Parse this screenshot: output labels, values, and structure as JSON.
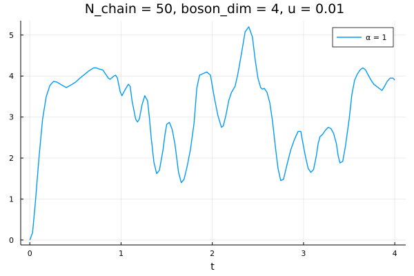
{
  "chart_data": {
    "type": "line",
    "title": "N_chain = 50, boson_dim = 4, u = 0.01",
    "xlabel": "t",
    "ylabel": "",
    "xlim": [
      -0.1,
      4.12
    ],
    "ylim": [
      -0.12,
      5.35
    ],
    "xticks": [
      0,
      1,
      2,
      3,
      4
    ],
    "yticks": [
      0,
      1,
      2,
      3,
      4,
      5
    ],
    "grid": true,
    "legend_position": "top-right",
    "colors": {
      "series": "#009AFA"
    },
    "series": [
      {
        "name": "α = 1",
        "x": [
          0,
          0.03,
          0.06,
          0.1,
          0.14,
          0.18,
          0.22,
          0.26,
          0.3,
          0.35,
          0.4,
          0.45,
          0.5,
          0.55,
          0.6,
          0.65,
          0.7,
          0.73,
          0.76,
          0.8,
          0.83,
          0.86,
          0.88,
          0.92,
          0.94,
          0.96,
          0.99,
          1.01,
          1.04,
          1.08,
          1.1,
          1.12,
          1.16,
          1.18,
          1.2,
          1.23,
          1.26,
          1.29,
          1.31,
          1.33,
          1.36,
          1.39,
          1.42,
          1.46,
          1.48,
          1.5,
          1.53,
          1.56,
          1.59,
          1.61,
          1.63,
          1.66,
          1.69,
          1.72,
          1.76,
          1.8,
          1.83,
          1.86,
          1.9,
          1.94,
          1.98,
          2.02,
          2.06,
          2.1,
          2.12,
          2.15,
          2.18,
          2.21,
          2.25,
          2.28,
          2.32,
          2.36,
          2.4,
          2.44,
          2.47,
          2.5,
          2.53,
          2.55,
          2.57,
          2.6,
          2.63,
          2.66,
          2.69,
          2.72,
          2.75,
          2.78,
          2.82,
          2.86,
          2.9,
          2.94,
          2.97,
          2.99,
          3.02,
          3.05,
          3.08,
          3.11,
          3.14,
          3.16,
          3.18,
          3.21,
          3.24,
          3.27,
          3.3,
          3.33,
          3.36,
          3.38,
          3.4,
          3.43,
          3.46,
          3.5,
          3.53,
          3.56,
          3.59,
          3.62,
          3.65,
          3.68,
          3.71,
          3.74,
          3.77,
          3.8,
          3.83,
          3.86,
          3.88,
          3.9,
          3.92,
          3.95,
          3.98,
          4.0
        ],
        "y": [
          0.0,
          0.18,
          0.9,
          2.0,
          2.95,
          3.5,
          3.77,
          3.87,
          3.85,
          3.78,
          3.72,
          3.78,
          3.85,
          3.95,
          4.04,
          4.13,
          4.2,
          4.2,
          4.17,
          4.15,
          4.05,
          3.95,
          3.92,
          4.0,
          4.02,
          3.95,
          3.62,
          3.52,
          3.65,
          3.8,
          3.75,
          3.4,
          2.95,
          2.88,
          2.95,
          3.3,
          3.52,
          3.4,
          3.0,
          2.5,
          1.9,
          1.62,
          1.7,
          2.2,
          2.55,
          2.82,
          2.87,
          2.7,
          2.35,
          2.0,
          1.65,
          1.4,
          1.48,
          1.75,
          2.2,
          2.85,
          3.7,
          4.02,
          4.06,
          4.1,
          4.02,
          3.5,
          3.05,
          2.75,
          2.78,
          3.05,
          3.4,
          3.6,
          3.75,
          4.05,
          4.55,
          5.08,
          5.2,
          4.95,
          4.4,
          3.95,
          3.72,
          3.68,
          3.7,
          3.6,
          3.35,
          2.9,
          2.3,
          1.75,
          1.45,
          1.48,
          1.85,
          2.2,
          2.45,
          2.65,
          2.65,
          2.4,
          2.05,
          1.75,
          1.65,
          1.72,
          2.05,
          2.35,
          2.52,
          2.58,
          2.68,
          2.75,
          2.72,
          2.6,
          2.35,
          2.05,
          1.88,
          1.92,
          2.3,
          2.95,
          3.55,
          3.9,
          4.05,
          4.15,
          4.2,
          4.15,
          4.02,
          3.9,
          3.8,
          3.75,
          3.7,
          3.65,
          3.72,
          3.8,
          3.88,
          3.95,
          3.95,
          3.9
        ]
      }
    ]
  }
}
